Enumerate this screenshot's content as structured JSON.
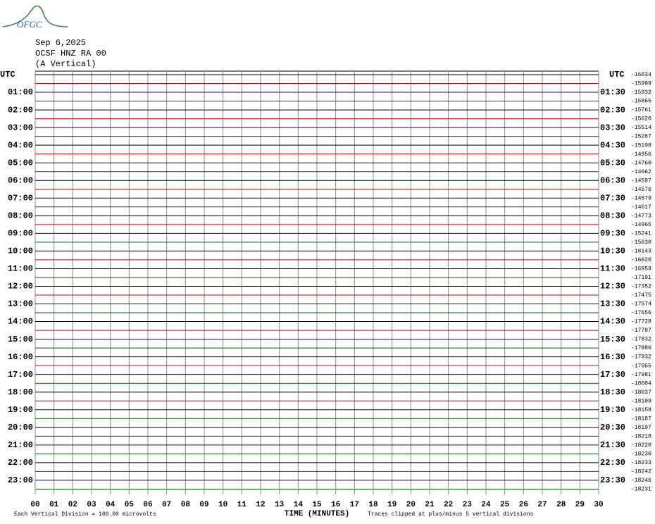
{
  "logo": "OFGC",
  "header": {
    "date": "Sep 6,2025",
    "station": "OCSF HNZ RA 00",
    "component": "(A Vertical)"
  },
  "left_axis": {
    "title": "UTC",
    "labels": [
      "01:00",
      "02:00",
      "03:00",
      "04:00",
      "05:00",
      "06:00",
      "07:00",
      "08:00",
      "09:00",
      "10:00",
      "11:00",
      "12:00",
      "13:00",
      "14:00",
      "15:00",
      "16:00",
      "17:00",
      "18:00",
      "19:00",
      "20:00",
      "21:00",
      "22:00",
      "23:00"
    ]
  },
  "right_axis": {
    "title": "UTC",
    "labels": [
      "01:30",
      "02:30",
      "03:30",
      "04:30",
      "05:30",
      "06:30",
      "07:30",
      "08:30",
      "09:30",
      "10:30",
      "11:30",
      "12:30",
      "13:30",
      "14:30",
      "15:30",
      "16:30",
      "17:30",
      "18:30",
      "19:30",
      "20:30",
      "21:30",
      "22:30",
      "23:30"
    ]
  },
  "offsets": [
    -16034,
    -15999,
    -15932,
    -15865,
    -15761,
    -15620,
    -15514,
    -15267,
    -15198,
    -14956,
    -14760,
    -14662,
    -14597,
    -14576,
    -14579,
    -14617,
    -14773,
    -14965,
    -15241,
    -15630,
    -16143,
    -16620,
    -16959,
    -17191,
    -17352,
    -17475,
    -17574,
    -17656,
    -17728,
    -17787,
    -17832,
    -17886,
    -17932,
    -17965,
    -17981,
    -18004,
    -18037,
    -18109,
    -18158,
    -18187,
    -18197,
    -18218,
    -18220,
    -18230,
    -18233,
    -18242,
    -18246,
    -18231
  ],
  "x_axis": {
    "title": "TIME (MINUTES)",
    "xlim": [
      0,
      30
    ],
    "ticks": [
      {
        "value": 0,
        "label": "00"
      },
      {
        "value": 1,
        "label": "01"
      },
      {
        "value": 2,
        "label": "02"
      },
      {
        "value": 3,
        "label": "03"
      },
      {
        "value": 4,
        "label": "04"
      },
      {
        "value": 5,
        "label": "05"
      },
      {
        "value": 6,
        "label": "06"
      },
      {
        "value": 7,
        "label": "07"
      },
      {
        "value": 8,
        "label": "08"
      },
      {
        "value": 9,
        "label": "09"
      },
      10,
      11,
      12,
      13,
      14,
      15,
      16,
      17,
      18,
      19,
      20,
      21,
      22,
      23,
      24,
      25,
      26,
      27,
      28,
      29,
      30
    ]
  },
  "trace_colors": [
    "#000000",
    "#cc0000",
    "#0000cc",
    "#006600"
  ],
  "footer": {
    "scale": "Each Vertical Division =  100.00 microvolts",
    "clip": "Traces clipped at plus/minus 5 vertical divisions"
  }
}
